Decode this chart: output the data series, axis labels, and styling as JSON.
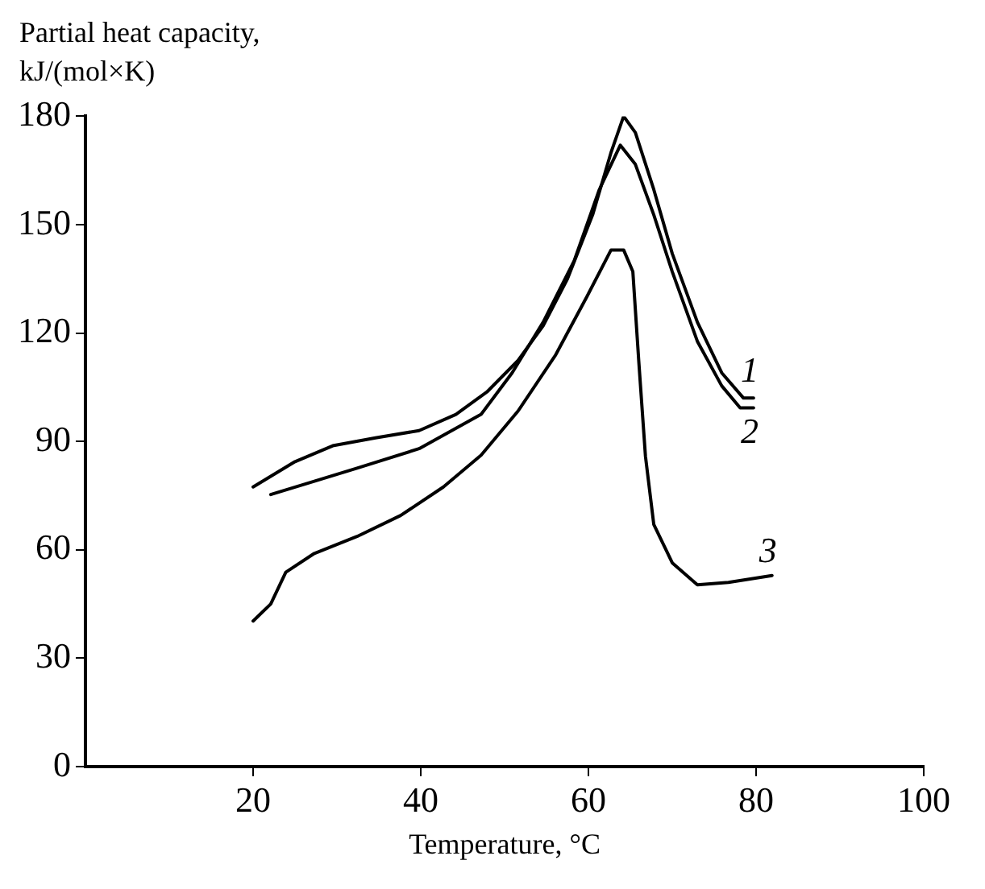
{
  "chart_data": {
    "type": "line",
    "xlabel": "Temperature, °C",
    "ylabel": "Partial heat capacity, kJ/(mol×K)",
    "xlim": [
      0,
      100
    ],
    "xticks": [
      20,
      40,
      60,
      80,
      100
    ],
    "ylim": [
      0,
      180
    ],
    "yticks": [
      0,
      30,
      60,
      90,
      120,
      150,
      180
    ],
    "grid": false,
    "legend": false,
    "marker": "none",
    "line_style": "solid",
    "series": [
      {
        "name": "1",
        "color": "#000000",
        "x": [
          20,
          25,
          29.5,
          34.6,
          39.8,
          44.2,
          47.9,
          51.6,
          54.6,
          57.5,
          60.5,
          62.7,
          64.2,
          65.6,
          67.8,
          70,
          73,
          75.9,
          78.5,
          79.7
        ],
        "values": [
          77.4,
          84.4,
          88.8,
          91,
          93,
          97.5,
          103.7,
          112.4,
          122,
          135,
          152.7,
          170,
          180,
          175.5,
          159.7,
          142,
          123,
          109,
          102,
          102
        ]
      },
      {
        "name": "2",
        "color": "#000000",
        "x": [
          22.1,
          27.3,
          32.4,
          39.8,
          47.2,
          50.9,
          54.6,
          58.3,
          61.3,
          63.8,
          65.6,
          67.8,
          70,
          73,
          75.9,
          78.1,
          79.7
        ],
        "values": [
          75.3,
          79,
          82.6,
          88,
          97.5,
          109,
          123,
          140,
          159.7,
          172,
          166.7,
          152.7,
          137,
          117.7,
          105.4,
          99.3,
          99.3
        ]
      },
      {
        "name": "3",
        "color": "#000000",
        "x": [
          20,
          22.1,
          23.9,
          27.3,
          32.4,
          37.6,
          42.7,
          47.2,
          51.6,
          56.1,
          59.8,
          62.7,
          64.2,
          65.3,
          66,
          66.8,
          67.8,
          70,
          73,
          76.7,
          81.9
        ],
        "values": [
          40.3,
          45,
          53.8,
          59,
          63.7,
          69.5,
          77.4,
          86.2,
          98.4,
          114,
          130,
          143,
          143,
          137,
          112.4,
          86,
          67,
          56.4,
          50.3,
          51,
          52.9
        ]
      }
    ]
  }
}
